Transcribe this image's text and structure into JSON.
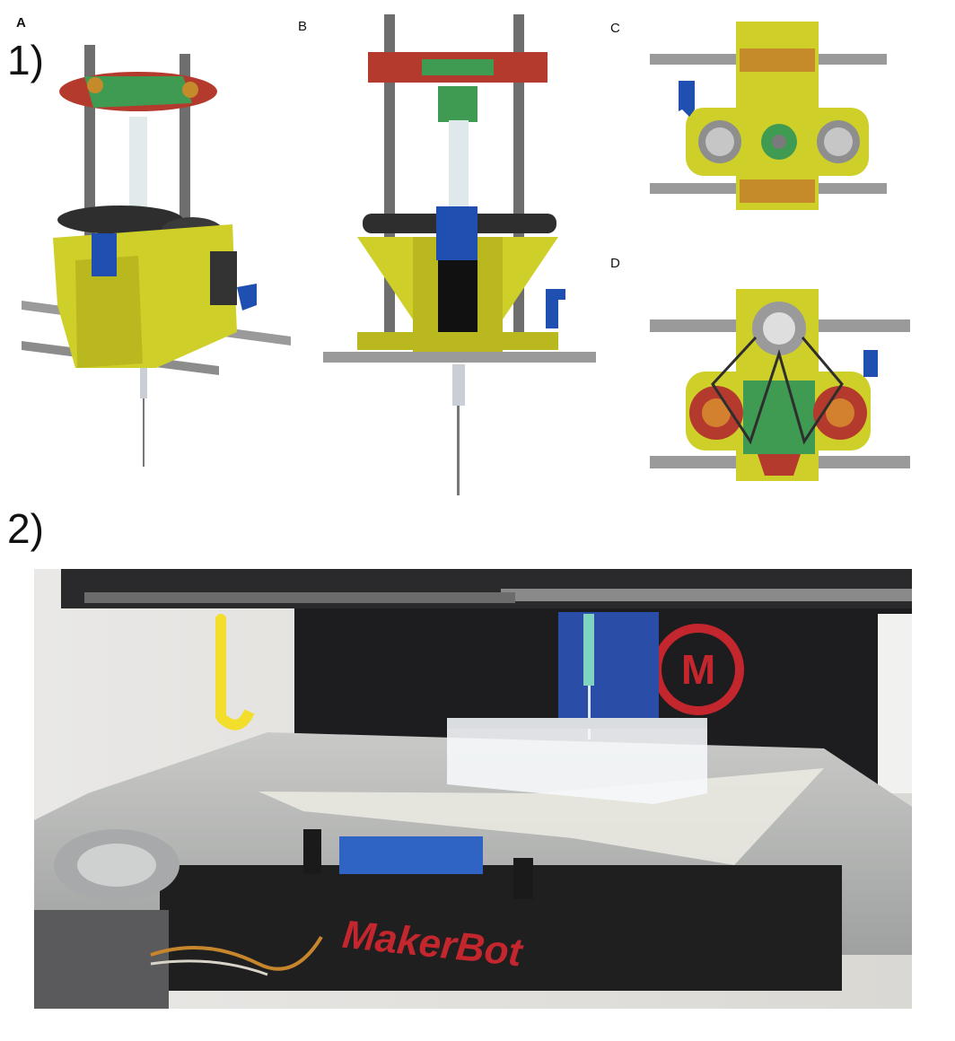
{
  "figure": {
    "part1_label": "1)",
    "part2_label": "2)",
    "panels": {
      "a": {
        "label": "A"
      },
      "b": {
        "label": "B"
      },
      "c": {
        "label": "C"
      },
      "d": {
        "label": "D"
      }
    }
  },
  "photo": {
    "brand_text": "MakerBot"
  },
  "colors": {
    "frame_yellow": "#cfcf2a",
    "plate_red": "#b43a2e",
    "pcb_green": "#3f9b52",
    "clip_blue": "#1f4fb0",
    "rod_grey": "#9a9a9a",
    "makerbot_red": "#c4262e"
  }
}
